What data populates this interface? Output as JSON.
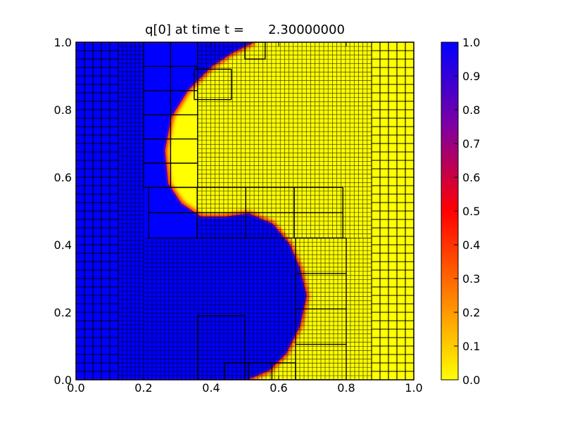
{
  "chart_data": {
    "type": "heatmap",
    "title": "q[0] at time t =      2.30000000",
    "xlabel": "",
    "ylabel": "",
    "xlim": [
      0.0,
      1.0
    ],
    "ylim": [
      0.0,
      1.0
    ],
    "x_ticks": [
      "0.0",
      "0.2",
      "0.4",
      "0.6",
      "0.8",
      "1.0"
    ],
    "y_ticks": [
      "0.0",
      "0.2",
      "0.4",
      "0.6",
      "0.8",
      "1.0"
    ],
    "grid": false,
    "colormap": {
      "name": "yellow-red-blue",
      "stops": [
        "#ffff00",
        "#ff8000",
        "#ff0000",
        "#8000a0",
        "#0000ff"
      ]
    },
    "colorbar": {
      "ticks": [
        "0.0",
        "0.1",
        "0.2",
        "0.3",
        "0.4",
        "0.5",
        "0.6",
        "0.7",
        "0.8",
        "0.9",
        "1.0"
      ],
      "range": [
        0.0,
        1.0
      ],
      "position": "right"
    },
    "field": {
      "description_value_high": 1.0,
      "description_value_low": 0.0,
      "interface_centerline": [
        [
          0.5,
          0.0
        ],
        [
          0.57,
          0.03
        ],
        [
          0.62,
          0.08
        ],
        [
          0.66,
          0.16
        ],
        [
          0.68,
          0.25
        ],
        [
          0.66,
          0.33
        ],
        [
          0.63,
          0.4
        ],
        [
          0.58,
          0.46
        ],
        [
          0.51,
          0.49
        ],
        [
          0.44,
          0.48
        ],
        [
          0.37,
          0.48
        ],
        [
          0.31,
          0.52
        ],
        [
          0.27,
          0.58
        ],
        [
          0.26,
          0.68
        ],
        [
          0.28,
          0.78
        ],
        [
          0.33,
          0.86
        ],
        [
          0.4,
          0.93
        ],
        [
          0.46,
          0.97
        ],
        [
          0.52,
          1.0
        ]
      ]
    },
    "amr_patches": [
      {
        "level": 1,
        "x": [
          0.0,
          0.125
        ],
        "y": [
          0.0,
          1.0
        ],
        "nx": 5,
        "ny": 40
      },
      {
        "level": 1,
        "x": [
          0.875,
          1.0
        ],
        "y": [
          0.0,
          1.0
        ],
        "nx": 5,
        "ny": 40
      },
      {
        "level": 2,
        "x": [
          0.125,
          0.2
        ],
        "y": [
          0.0,
          1.0
        ],
        "nx": 6,
        "ny": 80
      },
      {
        "level": 2,
        "x": [
          0.2,
          0.875
        ],
        "y": [
          0.0,
          0.42
        ],
        "nx": 54,
        "ny": 34
      },
      {
        "level": 2,
        "x": [
          0.36,
          0.875
        ],
        "y": [
          0.42,
          1.0
        ],
        "nx": 40,
        "ny": 46
      },
      {
        "level": 3,
        "x": [
          0.2,
          0.36
        ],
        "y": [
          0.57,
          1.0
        ],
        "nx": 2,
        "ny": 6
      },
      {
        "level": 3,
        "x": [
          0.215,
          0.79
        ],
        "y": [
          0.42,
          0.57
        ],
        "nx": 4,
        "ny": 2
      },
      {
        "level": 3,
        "x": [
          0.65,
          0.8
        ],
        "y": [
          0.0,
          0.42
        ],
        "nx": 1,
        "ny": 4
      },
      {
        "level": 3,
        "x": [
          0.36,
          0.5
        ],
        "y": [
          0.0,
          0.19
        ],
        "nx": 1,
        "ny": 1
      },
      {
        "level": 3,
        "x": [
          0.44,
          0.65
        ],
        "y": [
          0.0,
          0.05
        ],
        "nx": 3,
        "ny": 1
      },
      {
        "level": 3,
        "x": [
          0.35,
          0.46
        ],
        "y": [
          0.83,
          0.92
        ],
        "nx": 1,
        "ny": 1
      },
      {
        "level": 3,
        "x": [
          0.5,
          0.56
        ],
        "y": [
          0.95,
          1.0
        ],
        "nx": 1,
        "ny": 1
      }
    ]
  }
}
